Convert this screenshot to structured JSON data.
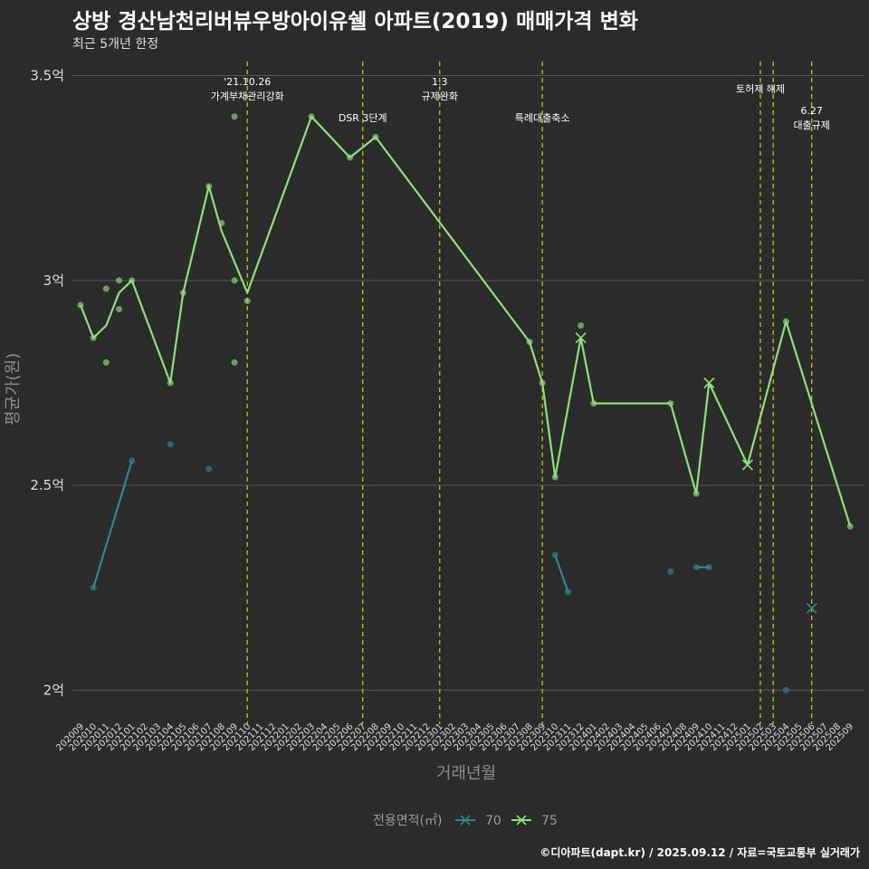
{
  "title": "상방 경산남천리버뷰우방아이유쉘 아파트(2019) 매매가격 변화",
  "subtitle": "최근 5개년 한정",
  "caption": "©디아파트(dapt.kr) / 2025.09.12 / 자료=국토교통부 실거래가",
  "colors": {
    "background": "#2b2b2b",
    "grid": "#555555",
    "series70": "#2a8a8c",
    "series75": "#8ee07a",
    "vline": "#c8d400"
  },
  "chart_data": {
    "type": "line",
    "xlabel": "거래년월",
    "ylabel": "평균가(원)",
    "ylim": [
      1.95,
      3.55
    ],
    "yticks": [
      {
        "value": 2.0,
        "label": "2억"
      },
      {
        "value": 2.5,
        "label": "2.5억"
      },
      {
        "value": 3.0,
        "label": "3억"
      },
      {
        "value": 3.5,
        "label": "3.5억"
      }
    ],
    "months": [
      "202009",
      "202010",
      "202011",
      "202012",
      "202101",
      "202102",
      "202103",
      "202104",
      "202105",
      "202106",
      "202107",
      "202108",
      "202109",
      "202110",
      "202111",
      "202112",
      "202201",
      "202202",
      "202203",
      "202204",
      "202205",
      "202206",
      "202207",
      "202208",
      "202209",
      "202210",
      "202211",
      "202212",
      "202301",
      "202302",
      "202303",
      "202304",
      "202305",
      "202306",
      "202307",
      "202308",
      "202309",
      "202310",
      "202311",
      "202312",
      "202401",
      "202402",
      "202403",
      "202404",
      "202405",
      "202406",
      "202407",
      "202408",
      "202409",
      "202410",
      "202411",
      "202412",
      "202501",
      "202502",
      "202503",
      "202504",
      "202505",
      "202506",
      "202507",
      "202508",
      "202509"
    ],
    "legend_title": "전용면적(㎡)",
    "series": [
      {
        "name": "70",
        "line_segments": [
          [
            [
              "202010",
              2.25
            ],
            [
              "202101",
              2.56
            ]
          ],
          [
            [
              "202310",
              2.33
            ],
            [
              "202311",
              2.24
            ]
          ],
          [
            [
              "202409",
              2.3
            ],
            [
              "202410",
              2.3
            ]
          ]
        ],
        "points": [
          [
            "202010",
            2.25
          ],
          [
            "202101",
            2.56
          ],
          [
            "202104",
            2.6
          ],
          [
            "202107",
            2.54
          ],
          [
            "202310",
            2.33
          ],
          [
            "202311",
            2.24
          ],
          [
            "202407",
            2.29
          ],
          [
            "202409",
            2.3
          ],
          [
            "202410",
            2.3
          ],
          [
            "202504",
            2.0
          ]
        ],
        "markers_x": [
          [
            "202506",
            2.2
          ]
        ]
      },
      {
        "name": "75",
        "line": [
          [
            "202009",
            2.94
          ],
          [
            "202010",
            2.86
          ],
          [
            "202011",
            2.89
          ],
          [
            "202012",
            2.97
          ],
          [
            "202101",
            3.0
          ],
          [
            "202104",
            2.75
          ],
          [
            "202105",
            2.97
          ],
          [
            "202107",
            3.23
          ],
          [
            "202108",
            3.12
          ],
          [
            "202110",
            2.97
          ],
          [
            "202203",
            3.4
          ],
          [
            "202206",
            3.3
          ],
          [
            "202208",
            3.35
          ],
          [
            "202308",
            2.85
          ],
          [
            "202309",
            2.75
          ],
          [
            "202310",
            2.52
          ],
          [
            "202312",
            2.86
          ],
          [
            "202401",
            2.7
          ],
          [
            "202407",
            2.7
          ],
          [
            "202409",
            2.48
          ],
          [
            "202410",
            2.75
          ],
          [
            "202501",
            2.55
          ],
          [
            "202504",
            2.9
          ],
          [
            "202509",
            2.4
          ]
        ],
        "points": [
          [
            "202009",
            2.94
          ],
          [
            "202010",
            2.86
          ],
          [
            "202011",
            2.98
          ],
          [
            "202011",
            2.8
          ],
          [
            "202012",
            3.0
          ],
          [
            "202012",
            2.93
          ],
          [
            "202101",
            3.0
          ],
          [
            "202104",
            2.75
          ],
          [
            "202105",
            2.97
          ],
          [
            "202107",
            3.23
          ],
          [
            "202108",
            3.14
          ],
          [
            "202109",
            3.4
          ],
          [
            "202109",
            3.0
          ],
          [
            "202109",
            2.8
          ],
          [
            "202110",
            2.95
          ],
          [
            "202203",
            3.4
          ],
          [
            "202206",
            3.3
          ],
          [
            "202208",
            3.35
          ],
          [
            "202308",
            2.85
          ],
          [
            "202309",
            2.75
          ],
          [
            "202310",
            2.52
          ],
          [
            "202312",
            2.89
          ],
          [
            "202401",
            2.7
          ],
          [
            "202407",
            2.7
          ],
          [
            "202409",
            2.48
          ],
          [
            "202504",
            2.9
          ],
          [
            "202509",
            2.4
          ]
        ],
        "markers_x": [
          [
            "202312",
            2.86
          ],
          [
            "202410",
            2.75
          ],
          [
            "202501",
            2.55
          ]
        ]
      }
    ],
    "events": [
      {
        "month": "202110",
        "lines": [
          "'21.10.26",
          "가계부채관리강화"
        ],
        "level": 0
      },
      {
        "month": "202207",
        "lines": [
          "DSR 3단계"
        ],
        "level": 2
      },
      {
        "month": "202301",
        "lines": [
          "1.3",
          "규제완화"
        ],
        "level": 0
      },
      {
        "month": "202309",
        "lines": [
          "특례대출축소"
        ],
        "level": 2
      },
      {
        "month": "202502",
        "lines": [
          "토허제 해제"
        ],
        "level": 1
      },
      {
        "month": "202503",
        "lines": [],
        "level": 1
      },
      {
        "month": "202506",
        "lines": [
          "6.27",
          "대출규제"
        ],
        "level": 3
      }
    ]
  }
}
